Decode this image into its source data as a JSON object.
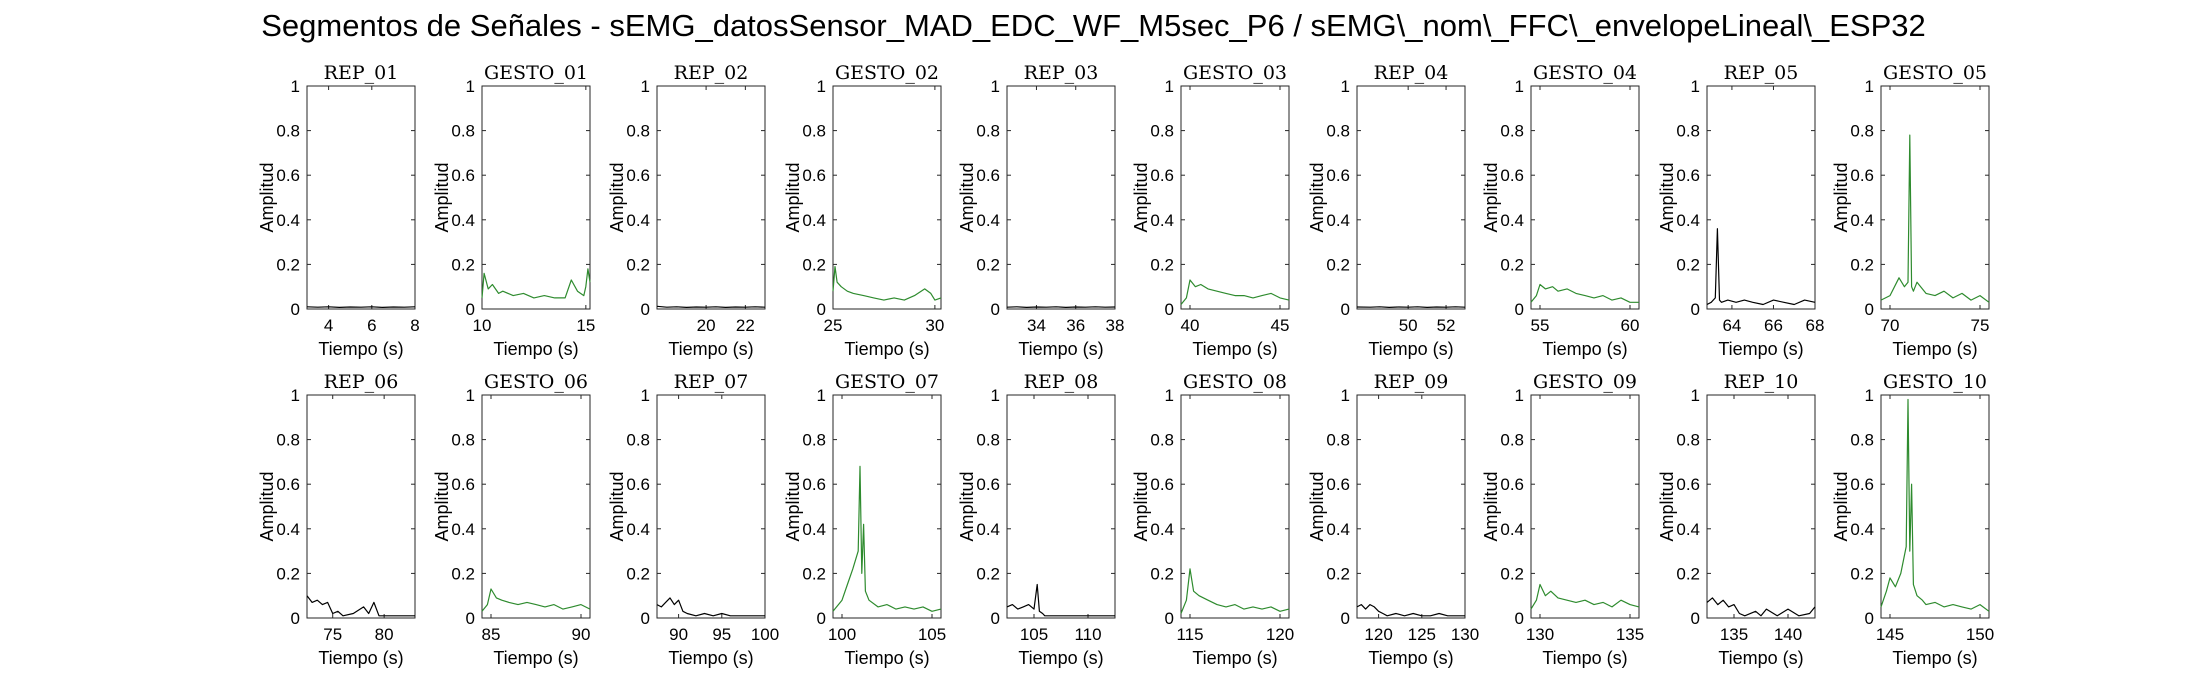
{
  "figure": {
    "title": "Segmentos de Señales - sEMG_datosSensor_MAD_EDC_WF_M5sec_P6 / sEMG\\_nom\\_FFC\\_envelopeLineal\\_ESP32"
  },
  "colors": {
    "rep": "#000000",
    "gesto": "#2e8b2e",
    "axis": "#262626"
  },
  "chart_data": [
    {
      "type": "line",
      "title": "REP_01",
      "xlabel": "Tiempo (s)",
      "ylabel": "Amplitud",
      "xlim": [
        3,
        8
      ],
      "ylim": [
        0,
        1
      ],
      "xticks": [
        4,
        6,
        8
      ],
      "yticks": [
        0,
        0.2,
        0.4,
        0.6,
        0.8,
        1
      ],
      "yticklabels": [
        "0",
        "0.2",
        "0.4",
        "0.6",
        "0.8",
        "1"
      ],
      "color": "rep",
      "x": [
        3,
        3.5,
        4,
        4.5,
        5,
        5.5,
        6,
        6.5,
        7,
        7.5,
        8
      ],
      "y": [
        0.01,
        0.008,
        0.01,
        0.007,
        0.009,
        0.008,
        0.01,
        0.007,
        0.009,
        0.008,
        0.01
      ]
    },
    {
      "type": "line",
      "title": "GESTO_01",
      "xlabel": "Tiempo (s)",
      "ylabel": "Amplitud",
      "xlim": [
        10,
        15.2
      ],
      "ylim": [
        0,
        1
      ],
      "xticks": [
        10,
        15
      ],
      "yticks": [
        0,
        0.2,
        0.4,
        0.6,
        0.8,
        1
      ],
      "yticklabels": [
        "0",
        "0.2",
        "0.4",
        "0.6",
        "0.8",
        "1"
      ],
      "color": "gesto",
      "x": [
        10,
        10.1,
        10.3,
        10.5,
        10.8,
        11,
        11.5,
        12,
        12.5,
        13,
        13.5,
        14,
        14.3,
        14.6,
        14.9,
        15,
        15.1,
        15.2
      ],
      "y": [
        0.05,
        0.16,
        0.09,
        0.11,
        0.07,
        0.08,
        0.06,
        0.07,
        0.05,
        0.06,
        0.05,
        0.05,
        0.13,
        0.08,
        0.06,
        0.1,
        0.18,
        0.12
      ]
    },
    {
      "type": "line",
      "title": "REP_02",
      "xlabel": "Tiempo (s)",
      "ylabel": "Amplitud",
      "xlim": [
        17.5,
        23
      ],
      "ylim": [
        0,
        1
      ],
      "xticks": [
        20,
        22
      ],
      "yticks": [
        0,
        0.2,
        0.4,
        0.6,
        0.8,
        1
      ],
      "yticklabels": [
        "0",
        "0.2",
        "0.4",
        "0.6",
        "0.8",
        "1"
      ],
      "color": "rep",
      "x": [
        17.5,
        18,
        18.5,
        19,
        19.5,
        20,
        20.5,
        21,
        21.5,
        22,
        22.5,
        23
      ],
      "y": [
        0.012,
        0.008,
        0.01,
        0.007,
        0.009,
        0.008,
        0.01,
        0.007,
        0.009,
        0.008,
        0.01,
        0.008
      ]
    },
    {
      "type": "line",
      "title": "GESTO_02",
      "xlabel": "Tiempo (s)",
      "ylabel": "Amplitud",
      "xlim": [
        25,
        30.3
      ],
      "ylim": [
        0,
        1
      ],
      "xticks": [
        25,
        30
      ],
      "yticks": [
        0,
        0.2,
        0.4,
        0.6,
        0.8,
        1
      ],
      "yticklabels": [
        "0",
        "0.2",
        "0.4",
        "0.6",
        "0.8",
        "1"
      ],
      "color": "gesto",
      "x": [
        25,
        25.1,
        25.2,
        25.4,
        25.7,
        26,
        26.5,
        27,
        27.5,
        28,
        28.5,
        29,
        29.5,
        29.8,
        30,
        30.3
      ],
      "y": [
        0.08,
        0.19,
        0.12,
        0.1,
        0.08,
        0.07,
        0.06,
        0.05,
        0.04,
        0.05,
        0.04,
        0.06,
        0.09,
        0.07,
        0.04,
        0.05
      ]
    },
    {
      "type": "line",
      "title": "REP_03",
      "xlabel": "Tiempo (s)",
      "ylabel": "Amplitud",
      "xlim": [
        32.5,
        38
      ],
      "ylim": [
        0,
        1
      ],
      "xticks": [
        34,
        36,
        38
      ],
      "yticks": [
        0,
        0.2,
        0.4,
        0.6,
        0.8,
        1
      ],
      "yticklabels": [
        "0",
        "0.2",
        "0.4",
        "0.6",
        "0.8",
        "1"
      ],
      "color": "rep",
      "x": [
        32.5,
        33,
        33.5,
        34,
        34.5,
        35,
        35.5,
        36,
        36.5,
        37,
        37.5,
        38
      ],
      "y": [
        0.008,
        0.01,
        0.007,
        0.009,
        0.008,
        0.01,
        0.007,
        0.009,
        0.008,
        0.01,
        0.008,
        0.009
      ]
    },
    {
      "type": "line",
      "title": "GESTO_03",
      "xlabel": "Tiempo (s)",
      "ylabel": "Amplitud",
      "xlim": [
        39.5,
        45.5
      ],
      "ylim": [
        0,
        1
      ],
      "xticks": [
        40,
        45
      ],
      "yticks": [
        0,
        0.2,
        0.4,
        0.6,
        0.8,
        1
      ],
      "yticklabels": [
        "0",
        "0.2",
        "0.4",
        "0.6",
        "0.8",
        "1"
      ],
      "color": "gesto",
      "x": [
        39.5,
        39.8,
        40,
        40.3,
        40.6,
        41,
        41.5,
        42,
        42.5,
        43,
        43.5,
        44,
        44.5,
        45,
        45.5
      ],
      "y": [
        0.02,
        0.05,
        0.13,
        0.1,
        0.11,
        0.09,
        0.08,
        0.07,
        0.06,
        0.06,
        0.05,
        0.06,
        0.07,
        0.05,
        0.04
      ]
    },
    {
      "type": "line",
      "title": "REP_04",
      "xlabel": "Tiempo (s)",
      "ylabel": "Amplitud",
      "xlim": [
        47.3,
        53
      ],
      "ylim": [
        0,
        1
      ],
      "xticks": [
        50,
        52
      ],
      "yticks": [
        0,
        0.2,
        0.4,
        0.6,
        0.8,
        1
      ],
      "yticklabels": [
        "0",
        "0.2",
        "0.4",
        "0.6",
        "0.8",
        "1"
      ],
      "color": "rep",
      "x": [
        47.3,
        48,
        48.5,
        49,
        49.5,
        50,
        50.5,
        51,
        51.5,
        52,
        52.5,
        53
      ],
      "y": [
        0.009,
        0.008,
        0.01,
        0.007,
        0.009,
        0.008,
        0.01,
        0.007,
        0.009,
        0.008,
        0.01,
        0.008
      ]
    },
    {
      "type": "line",
      "title": "GESTO_04",
      "xlabel": "Tiempo (s)",
      "ylabel": "Amplitud",
      "xlim": [
        54.5,
        60.5
      ],
      "ylim": [
        0,
        1
      ],
      "xticks": [
        55,
        60
      ],
      "yticks": [
        0,
        0.2,
        0.4,
        0.6,
        0.8,
        1
      ],
      "yticklabels": [
        "0",
        "0.2",
        "0.4",
        "0.6",
        "0.8",
        "1"
      ],
      "color": "gesto",
      "x": [
        54.5,
        54.8,
        55,
        55.3,
        55.7,
        56,
        56.5,
        57,
        57.5,
        58,
        58.5,
        59,
        59.5,
        60,
        60.5
      ],
      "y": [
        0.03,
        0.06,
        0.11,
        0.09,
        0.1,
        0.08,
        0.09,
        0.07,
        0.06,
        0.05,
        0.06,
        0.04,
        0.05,
        0.03,
        0.03
      ]
    },
    {
      "type": "line",
      "title": "REP_05",
      "xlabel": "Tiempo (s)",
      "ylabel": "Amplitud",
      "xlim": [
        62.8,
        68
      ],
      "ylim": [
        0,
        1
      ],
      "xticks": [
        64,
        66,
        68
      ],
      "yticks": [
        0,
        0.2,
        0.4,
        0.6,
        0.8,
        1
      ],
      "yticklabels": [
        "0",
        "0.2",
        "0.4",
        "0.6",
        "0.8",
        "1"
      ],
      "color": "rep",
      "x": [
        62.8,
        63,
        63.2,
        63.3,
        63.4,
        63.5,
        63.8,
        64.2,
        64.6,
        65,
        65.5,
        66,
        66.5,
        67,
        67.5,
        68
      ],
      "y": [
        0.02,
        0.03,
        0.05,
        0.36,
        0.04,
        0.03,
        0.04,
        0.03,
        0.04,
        0.03,
        0.02,
        0.04,
        0.03,
        0.02,
        0.04,
        0.03
      ]
    },
    {
      "type": "line",
      "title": "GESTO_05",
      "xlabel": "Tiempo (s)",
      "ylabel": "Amplitud",
      "xlim": [
        69.5,
        75.5
      ],
      "ylim": [
        0,
        1
      ],
      "xticks": [
        70,
        75
      ],
      "yticks": [
        0,
        0.2,
        0.4,
        0.6,
        0.8,
        1
      ],
      "yticklabels": [
        "0",
        "0.2",
        "0.4",
        "0.6",
        "0.8",
        "1"
      ],
      "color": "gesto",
      "x": [
        69.5,
        70,
        70.5,
        70.8,
        71,
        71.1,
        71.2,
        71.3,
        71.5,
        72,
        72.5,
        73,
        73.5,
        74,
        74.5,
        75,
        75.5
      ],
      "y": [
        0.04,
        0.06,
        0.14,
        0.1,
        0.12,
        0.78,
        0.1,
        0.08,
        0.12,
        0.07,
        0.06,
        0.08,
        0.05,
        0.07,
        0.04,
        0.06,
        0.03
      ]
    },
    {
      "type": "line",
      "title": "REP_06",
      "xlabel": "Tiempo (s)",
      "ylabel": "Amplitud",
      "xlim": [
        72.5,
        83
      ],
      "ylim": [
        0,
        1
      ],
      "xticks": [
        75,
        80
      ],
      "yticks": [
        0,
        0.2,
        0.4,
        0.6,
        0.8,
        1
      ],
      "yticklabels": [
        "0",
        "0.2",
        "0.4",
        "0.6",
        "0.8",
        "1"
      ],
      "color": "rep",
      "x": [
        72.5,
        73,
        73.5,
        74,
        74.5,
        75,
        75.5,
        76,
        77,
        78,
        78.5,
        79,
        79.5,
        80,
        81,
        82,
        83
      ],
      "y": [
        0.1,
        0.07,
        0.08,
        0.06,
        0.07,
        0.02,
        0.03,
        0.01,
        0.02,
        0.05,
        0.02,
        0.07,
        0.01,
        0.01,
        0.01,
        0.01,
        0.01
      ]
    },
    {
      "type": "line",
      "title": "GESTO_06",
      "xlabel": "Tiempo (s)",
      "ylabel": "Amplitud",
      "xlim": [
        84.5,
        90.5
      ],
      "ylim": [
        0,
        1
      ],
      "xticks": [
        85,
        90
      ],
      "yticks": [
        0,
        0.2,
        0.4,
        0.6,
        0.8,
        1
      ],
      "yticklabels": [
        "0",
        "0.2",
        "0.4",
        "0.6",
        "0.8",
        "1"
      ],
      "color": "gesto",
      "x": [
        84.5,
        84.8,
        85,
        85.3,
        85.6,
        86,
        86.5,
        87,
        87.5,
        88,
        88.5,
        89,
        89.5,
        90,
        90.5
      ],
      "y": [
        0.03,
        0.06,
        0.13,
        0.09,
        0.08,
        0.07,
        0.06,
        0.07,
        0.06,
        0.05,
        0.06,
        0.04,
        0.05,
        0.06,
        0.04
      ]
    },
    {
      "type": "line",
      "title": "REP_07",
      "xlabel": "Tiempo (s)",
      "ylabel": "Amplitud",
      "xlim": [
        87.5,
        100
      ],
      "ylim": [
        0,
        1
      ],
      "xticks": [
        90,
        95,
        100
      ],
      "yticks": [
        0,
        0.2,
        0.4,
        0.6,
        0.8,
        1
      ],
      "yticklabels": [
        "0",
        "0.2",
        "0.4",
        "0.6",
        "0.8",
        "1"
      ],
      "color": "rep",
      "x": [
        87.5,
        88,
        88.5,
        89,
        89.5,
        90,
        90.5,
        91,
        92,
        93,
        94,
        95,
        96,
        97,
        98,
        99,
        100
      ],
      "y": [
        0.06,
        0.05,
        0.07,
        0.09,
        0.06,
        0.08,
        0.03,
        0.02,
        0.01,
        0.02,
        0.01,
        0.02,
        0.01,
        0.01,
        0.01,
        0.01,
        0.01
      ]
    },
    {
      "type": "line",
      "title": "GESTO_07",
      "xlabel": "Tiempo (s)",
      "ylabel": "Amplitud",
      "xlim": [
        99.5,
        105.5
      ],
      "ylim": [
        0,
        1
      ],
      "xticks": [
        100,
        105
      ],
      "yticks": [
        0,
        0.2,
        0.4,
        0.6,
        0.8,
        1
      ],
      "yticklabels": [
        "0",
        "0.2",
        "0.4",
        "0.6",
        "0.8",
        "1"
      ],
      "color": "gesto",
      "x": [
        99.5,
        100,
        100.3,
        100.6,
        100.9,
        101,
        101.1,
        101.2,
        101.3,
        101.5,
        102,
        102.5,
        103,
        103.5,
        104,
        104.5,
        105,
        105.5
      ],
      "y": [
        0.03,
        0.08,
        0.15,
        0.22,
        0.3,
        0.68,
        0.2,
        0.42,
        0.12,
        0.08,
        0.05,
        0.06,
        0.04,
        0.05,
        0.04,
        0.05,
        0.03,
        0.04
      ]
    },
    {
      "type": "line",
      "title": "REP_08",
      "xlabel": "Tiempo (s)",
      "ylabel": "Amplitud",
      "xlim": [
        102.5,
        112.5
      ],
      "ylim": [
        0,
        1
      ],
      "xticks": [
        105,
        110
      ],
      "yticks": [
        0,
        0.2,
        0.4,
        0.6,
        0.8,
        1
      ],
      "yticklabels": [
        "0",
        "0.2",
        "0.4",
        "0.6",
        "0.8",
        "1"
      ],
      "color": "rep",
      "x": [
        102.5,
        103,
        103.5,
        104,
        104.5,
        105,
        105.3,
        105.5,
        105.8,
        106,
        107,
        108,
        109,
        110,
        111,
        112.5
      ],
      "y": [
        0.05,
        0.06,
        0.04,
        0.05,
        0.06,
        0.04,
        0.15,
        0.03,
        0.02,
        0.01,
        0.01,
        0.01,
        0.01,
        0.01,
        0.01,
        0.01
      ]
    },
    {
      "type": "line",
      "title": "GESTO_08",
      "xlabel": "Tiempo (s)",
      "ylabel": "Amplitud",
      "xlim": [
        114.5,
        120.5
      ],
      "ylim": [
        0,
        1
      ],
      "xticks": [
        115,
        120
      ],
      "yticks": [
        0,
        0.2,
        0.4,
        0.6,
        0.8,
        1
      ],
      "yticklabels": [
        "0",
        "0.2",
        "0.4",
        "0.6",
        "0.8",
        "1"
      ],
      "color": "gesto",
      "x": [
        114.5,
        114.8,
        115,
        115.2,
        115.5,
        116,
        116.5,
        117,
        117.5,
        118,
        118.5,
        119,
        119.5,
        120,
        120.5
      ],
      "y": [
        0.02,
        0.08,
        0.22,
        0.12,
        0.1,
        0.08,
        0.06,
        0.05,
        0.06,
        0.04,
        0.05,
        0.04,
        0.05,
        0.03,
        0.04
      ]
    },
    {
      "type": "line",
      "title": "REP_09",
      "xlabel": "Tiempo (s)",
      "ylabel": "Amplitud",
      "xlim": [
        117.5,
        130
      ],
      "ylim": [
        0,
        1
      ],
      "xticks": [
        120,
        125,
        130
      ],
      "yticks": [
        0,
        0.2,
        0.4,
        0.6,
        0.8,
        1
      ],
      "yticklabels": [
        "0",
        "0.2",
        "0.4",
        "0.6",
        "0.8",
        "1"
      ],
      "color": "rep",
      "x": [
        117.5,
        118,
        118.5,
        119,
        119.5,
        120,
        120.5,
        121,
        122,
        123,
        124,
        125,
        126,
        127,
        128,
        129,
        130
      ],
      "y": [
        0.05,
        0.06,
        0.04,
        0.06,
        0.05,
        0.03,
        0.02,
        0.01,
        0.02,
        0.01,
        0.02,
        0.01,
        0.01,
        0.02,
        0.01,
        0.01,
        0.01
      ]
    },
    {
      "type": "line",
      "title": "GESTO_09",
      "xlabel": "Tiempo (s)",
      "ylabel": "Amplitud",
      "xlim": [
        129.5,
        135.5
      ],
      "ylim": [
        0,
        1
      ],
      "xticks": [
        130,
        135
      ],
      "yticks": [
        0,
        0.2,
        0.4,
        0.6,
        0.8,
        1
      ],
      "yticklabels": [
        "0",
        "0.2",
        "0.4",
        "0.6",
        "0.8",
        "1"
      ],
      "color": "gesto",
      "x": [
        129.5,
        129.8,
        130,
        130.3,
        130.6,
        131,
        131.5,
        132,
        132.5,
        133,
        133.5,
        134,
        134.5,
        135,
        135.5
      ],
      "y": [
        0.04,
        0.08,
        0.15,
        0.1,
        0.12,
        0.09,
        0.08,
        0.07,
        0.08,
        0.06,
        0.07,
        0.05,
        0.08,
        0.06,
        0.05
      ]
    },
    {
      "type": "line",
      "title": "REP_10",
      "xlabel": "Tiempo (s)",
      "ylabel": "Amplitud",
      "xlim": [
        132.5,
        142.5
      ],
      "ylim": [
        0,
        1
      ],
      "xticks": [
        135,
        140
      ],
      "yticks": [
        0,
        0.2,
        0.4,
        0.6,
        0.8,
        1
      ],
      "yticklabels": [
        "0",
        "0.2",
        "0.4",
        "0.6",
        "0.8",
        "1"
      ],
      "color": "rep",
      "x": [
        132.5,
        133,
        133.5,
        134,
        134.5,
        135,
        135.5,
        136,
        137,
        137.5,
        138,
        139,
        140,
        141,
        142,
        142.5
      ],
      "y": [
        0.07,
        0.09,
        0.06,
        0.08,
        0.05,
        0.06,
        0.02,
        0.01,
        0.03,
        0.01,
        0.04,
        0.01,
        0.04,
        0.01,
        0.02,
        0.05
      ]
    },
    {
      "type": "line",
      "title": "GESTO_10",
      "xlabel": "Tiempo (s)",
      "ylabel": "Amplitud",
      "xlim": [
        144.5,
        150.5
      ],
      "ylim": [
        0,
        1
      ],
      "xticks": [
        145,
        150
      ],
      "yticks": [
        0,
        0.2,
        0.4,
        0.6,
        0.8,
        1
      ],
      "yticklabels": [
        "0",
        "0.2",
        "0.4",
        "0.6",
        "0.8",
        "1"
      ],
      "color": "gesto",
      "x": [
        144.5,
        144.8,
        145,
        145.3,
        145.6,
        145.9,
        146,
        146.1,
        146.2,
        146.3,
        146.5,
        146.8,
        147,
        147.5,
        148,
        148.5,
        149,
        149.5,
        150,
        150.5
      ],
      "y": [
        0.05,
        0.12,
        0.18,
        0.14,
        0.2,
        0.32,
        0.98,
        0.3,
        0.6,
        0.15,
        0.1,
        0.08,
        0.06,
        0.07,
        0.05,
        0.06,
        0.05,
        0.04,
        0.06,
        0.03
      ]
    }
  ]
}
